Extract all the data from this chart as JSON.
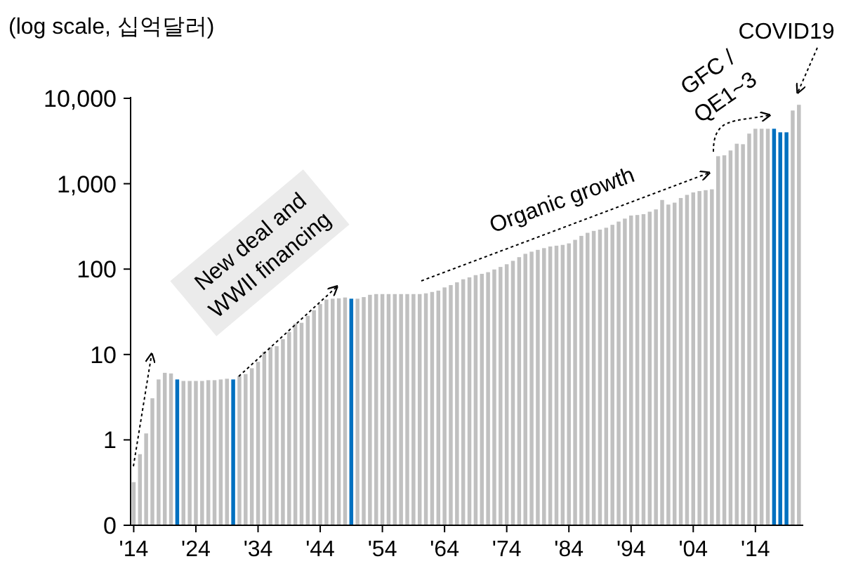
{
  "chart_data": {
    "type": "bar",
    "ylabel": "(log scale, 십억달러)",
    "log": "y",
    "x": [
      1914,
      1915,
      1916,
      1917,
      1918,
      1919,
      1920,
      1921,
      1922,
      1923,
      1924,
      1925,
      1926,
      1927,
      1928,
      1929,
      1930,
      1931,
      1932,
      1933,
      1934,
      1935,
      1936,
      1937,
      1938,
      1939,
      1940,
      1941,
      1942,
      1943,
      1944,
      1945,
      1946,
      1947,
      1948,
      1949,
      1950,
      1951,
      1952,
      1953,
      1954,
      1955,
      1956,
      1957,
      1958,
      1959,
      1960,
      1961,
      1962,
      1963,
      1964,
      1965,
      1966,
      1967,
      1968,
      1969,
      1970,
      1971,
      1972,
      1973,
      1974,
      1975,
      1976,
      1977,
      1978,
      1979,
      1980,
      1981,
      1982,
      1983,
      1984,
      1985,
      1986,
      1987,
      1988,
      1989,
      1990,
      1991,
      1992,
      1993,
      1994,
      1995,
      1996,
      1997,
      1998,
      1999,
      2000,
      2001,
      2002,
      2003,
      2004,
      2005,
      2006,
      2007,
      2008,
      2009,
      2010,
      2011,
      2012,
      2013,
      2014,
      2015,
      2016,
      2017,
      2018,
      2019,
      2020,
      2021
    ],
    "values": [
      0.32,
      0.68,
      1.19,
      3.07,
      5.1,
      6.1,
      6.0,
      5.1,
      4.9,
      4.9,
      4.9,
      4.9,
      5.0,
      5.0,
      5.1,
      5.2,
      5.1,
      5.6,
      5.9,
      6.9,
      8.2,
      10.8,
      12.2,
      12.5,
      15.1,
      18.3,
      23,
      23.5,
      28.4,
      33,
      39,
      44,
      45,
      45.5,
      46.5,
      45,
      45,
      47,
      50,
      51,
      51,
      51,
      51,
      51,
      51,
      51,
      51,
      52,
      54,
      56,
      61,
      65,
      70,
      76,
      80,
      85,
      88,
      92,
      99,
      106,
      114,
      125,
      138,
      151,
      160,
      168,
      176,
      184,
      188,
      192,
      200,
      220,
      245,
      266,
      280,
      290,
      305,
      330,
      360,
      390,
      424,
      430,
      440,
      470,
      500,
      645,
      570,
      600,
      680,
      740,
      790,
      820,
      840,
      860,
      2100,
      2150,
      2450,
      2940,
      2900,
      3860,
      4400,
      4400,
      4400,
      4400,
      4000,
      4000,
      7200,
      8400
    ],
    "colors": [
      "#c0c0c0",
      "#c0c0c0",
      "#c0c0c0",
      "#c0c0c0",
      "#c0c0c0",
      "#c0c0c0",
      "#c0c0c0",
      "#0070c0",
      "#c0c0c0",
      "#c0c0c0",
      "#c0c0c0",
      "#c0c0c0",
      "#c0c0c0",
      "#c0c0c0",
      "#c0c0c0",
      "#c0c0c0",
      "#0070c0",
      "#c0c0c0",
      "#c0c0c0",
      "#c0c0c0",
      "#c0c0c0",
      "#c0c0c0",
      "#c0c0c0",
      "#c0c0c0",
      "#c0c0c0",
      "#c0c0c0",
      "#c0c0c0",
      "#c0c0c0",
      "#c0c0c0",
      "#c0c0c0",
      "#c0c0c0",
      "#c0c0c0",
      "#c0c0c0",
      "#c0c0c0",
      "#c0c0c0",
      "#0070c0",
      "#c0c0c0",
      "#c0c0c0",
      "#c0c0c0",
      "#c0c0c0",
      "#c0c0c0",
      "#c0c0c0",
      "#c0c0c0",
      "#c0c0c0",
      "#c0c0c0",
      "#c0c0c0",
      "#c0c0c0",
      "#c0c0c0",
      "#c0c0c0",
      "#c0c0c0",
      "#c0c0c0",
      "#c0c0c0",
      "#c0c0c0",
      "#c0c0c0",
      "#c0c0c0",
      "#c0c0c0",
      "#c0c0c0",
      "#c0c0c0",
      "#c0c0c0",
      "#c0c0c0",
      "#c0c0c0",
      "#c0c0c0",
      "#c0c0c0",
      "#c0c0c0",
      "#c0c0c0",
      "#c0c0c0",
      "#c0c0c0",
      "#c0c0c0",
      "#c0c0c0",
      "#c0c0c0",
      "#c0c0c0",
      "#c0c0c0",
      "#c0c0c0",
      "#c0c0c0",
      "#c0c0c0",
      "#c0c0c0",
      "#c0c0c0",
      "#c0c0c0",
      "#c0c0c0",
      "#c0c0c0",
      "#c0c0c0",
      "#c0c0c0",
      "#c0c0c0",
      "#c0c0c0",
      "#c0c0c0",
      "#c0c0c0",
      "#c0c0c0",
      "#c0c0c0",
      "#c0c0c0",
      "#c0c0c0",
      "#c0c0c0",
      "#c0c0c0",
      "#c0c0c0",
      "#c0c0c0",
      "#c0c0c0",
      "#c0c0c0",
      "#c0c0c0",
      "#c0c0c0",
      "#c0c0c0",
      "#c0c0c0",
      "#c0c0c0",
      "#c0c0c0",
      "#c0c0c0",
      "#0070c0",
      "#0070c0",
      "#0070c0",
      "#c0c0c0",
      "#c0c0c0"
    ],
    "xlim": [
      1913.5,
      2021.7
    ],
    "ylim": [
      0.1,
      10000
    ],
    "xticks": [
      {
        "value": 1914,
        "label": "'14"
      },
      {
        "value": 1924,
        "label": "'24"
      },
      {
        "value": 1934,
        "label": "'34"
      },
      {
        "value": 1944,
        "label": "'44"
      },
      {
        "value": 1954,
        "label": "'54"
      },
      {
        "value": 1964,
        "label": "'64"
      },
      {
        "value": 1974,
        "label": "'74"
      },
      {
        "value": 1984,
        "label": "'84"
      },
      {
        "value": 1994,
        "label": "'94"
      },
      {
        "value": 2004,
        "label": "'04"
      },
      {
        "value": 2014,
        "label": "'14"
      }
    ],
    "yticks": [
      {
        "value": 0.1,
        "label": "0"
      },
      1,
      10,
      100,
      {
        "value": 1000,
        "label": "1,000"
      },
      {
        "value": 10000,
        "label": "10,000"
      }
    ],
    "annotations": [
      "New deal and WWII financing",
      "Organic growth",
      "GFC / QE1~3",
      "COVID19"
    ]
  }
}
